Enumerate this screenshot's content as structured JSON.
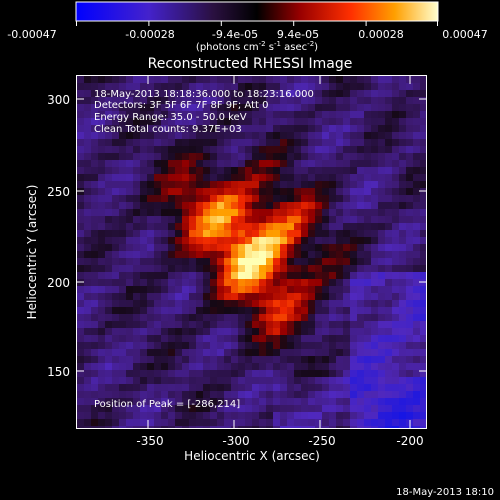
{
  "colorbar": {
    "tick_labels": [
      "-0.00047",
      "-0.00028",
      "-9.4e-05",
      "9.4e-05",
      "0.00028",
      "0.00047"
    ],
    "unit_label_prefix": "(photons cm",
    "unit_sup1": "-2",
    "unit_mid": " s",
    "unit_sup2": "-1",
    "unit_mid2": " asec",
    "unit_sup3": "-2",
    "unit_suffix": ")"
  },
  "plot": {
    "title": "Reconstructed RHESSI Image",
    "info_lines": [
      "18-May-2013 18:18:36.000 to 18:23:16.000",
      "Detectors: 3F 5F 6F 7F 8F 9F; Att 0",
      "Energy Range: 35.0 - 50.0 keV",
      "Clean     Total counts: 9.37E+03"
    ],
    "peak_label": "Position of Peak = [-286,214]",
    "x_axis": {
      "label": "Heliocentric X (arcsec)",
      "tick_labels": [
        "-350",
        "-300",
        "-250",
        "-200"
      ],
      "range": [
        -390,
        -197
      ]
    },
    "y_axis": {
      "label": "Heliocentric Y (arcsec)",
      "tick_labels": [
        "150",
        "200",
        "250",
        "300"
      ],
      "range": [
        120,
        313
      ]
    }
  },
  "footer": {
    "timestamp": "18-May-2013 18:10"
  },
  "colors": {
    "background": "#000000",
    "foreground": "#ffffff",
    "colormap": [
      "#0000ff",
      "#5522bb",
      "#3d1a6e",
      "#000000",
      "#8a0000",
      "#ff2a00",
      "#ffa000",
      "#ffffb0"
    ]
  }
}
